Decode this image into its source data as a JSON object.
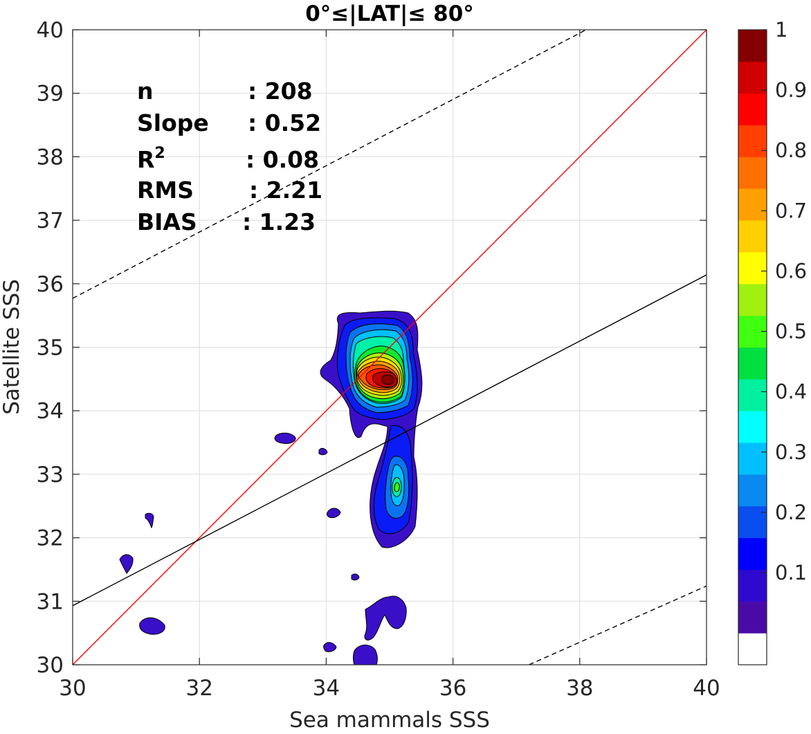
{
  "chart_data": {
    "type": "contour",
    "title": "0°≤|LAT|≤ 80°",
    "xlabel": "Sea mammals SSS",
    "ylabel": "Satellite SSS",
    "xlim": [
      30,
      40
    ],
    "ylim": [
      30,
      40
    ],
    "xticks": [
      "30",
      "32",
      "34",
      "36",
      "38",
      "40"
    ],
    "yticks": [
      "30",
      "31",
      "32",
      "33",
      "34",
      "35",
      "36",
      "37",
      "38",
      "39",
      "40"
    ],
    "grid": true,
    "stats": [
      {
        "label": "n",
        "sep": ":",
        "value": "208"
      },
      {
        "label": "Slope",
        "sep": ":",
        "value": "0.52"
      },
      {
        "label": "R",
        "sup": "2",
        "sep": ":",
        "value": "0.08"
      },
      {
        "label": "RMS",
        "sep": ":",
        "value": "2.21"
      },
      {
        "label": "BIAS",
        "sep": ":",
        "value": "1.23"
      }
    ],
    "lines": [
      {
        "role": "1:1",
        "color": "#ff0000",
        "style": "solid",
        "x": [
          30,
          40
        ],
        "y": [
          30,
          40
        ]
      },
      {
        "role": "fit",
        "color": "#000000",
        "style": "solid",
        "x": [
          30,
          40
        ],
        "y": [
          30.93,
          36.14
        ]
      },
      {
        "role": "upper-bound",
        "color": "#000000",
        "style": "dashed",
        "x": [
          30,
          38.1
        ],
        "y": [
          35.77,
          40
        ]
      },
      {
        "role": "lower-bound",
        "color": "#000000",
        "style": "dashed",
        "x": [
          37.2,
          40
        ],
        "y": [
          30,
          31.24
        ]
      }
    ],
    "density_peaks": [
      {
        "x": 35.05,
        "y": 34.5,
        "level": 1.0
      },
      {
        "x": 35.05,
        "y": 32.75,
        "level": 0.4
      }
    ],
    "colorbar": {
      "tick_labels": [
        "0.1",
        "0.2",
        "0.3",
        "0.4",
        "0.5",
        "0.6",
        "0.7",
        "0.8",
        "0.9",
        "1"
      ],
      "levels_from_bottom": [
        "#ffffff",
        "#4a0aa8",
        "#2e0ad0",
        "#0000ff",
        "#0a4ef0",
        "#0a8af0",
        "#00bfff",
        "#00ffff",
        "#00f0a0",
        "#00e040",
        "#40ff10",
        "#a0f010",
        "#ffff00",
        "#ffd000",
        "#ffa000",
        "#ff7000",
        "#ff4000",
        "#ff0000",
        "#d00000",
        "#850000"
      ]
    }
  }
}
